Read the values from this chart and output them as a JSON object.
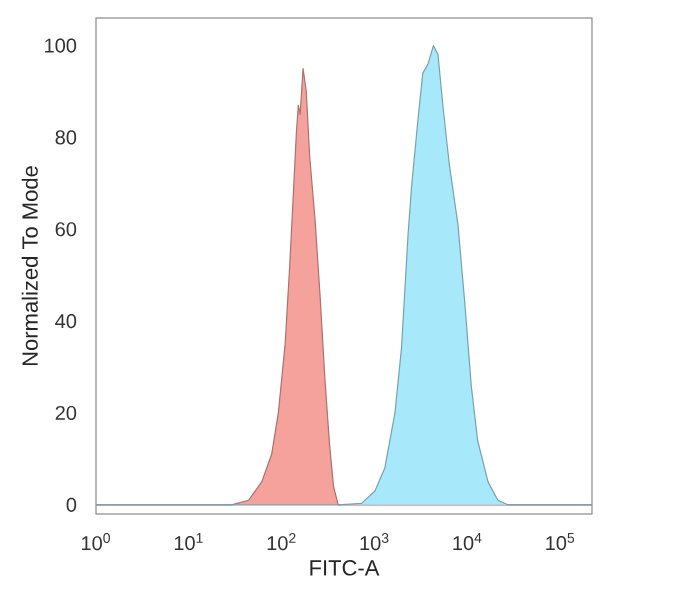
{
  "chart_data": {
    "type": "area",
    "xlabel": "FITC-A",
    "ylabel": "Normalized To Mode",
    "log": "x",
    "xlim": [
      1,
      220000
    ],
    "ylim": [
      -2,
      106
    ],
    "xticks": [
      {
        "value": 1,
        "label": "10$^{0}$"
      },
      {
        "value": 10,
        "label": "10$^{1}$"
      },
      {
        "value": 100,
        "label": "10$^{2}$"
      },
      {
        "value": 1000,
        "label": "10$^{3}$"
      },
      {
        "value": 10000,
        "label": "10$^{4}$"
      },
      {
        "value": 100000,
        "label": "10$^{5}$"
      }
    ],
    "yticks": [
      0,
      20,
      40,
      60,
      80,
      100
    ],
    "series": [
      {
        "color": "#f5a29c",
        "x": [
          1,
          29,
          44,
          61,
          78,
          92,
          109,
          122,
          133,
          144,
          151,
          158,
          170,
          184,
          200,
          229,
          260,
          293,
          328,
          362,
          406,
          220000
        ],
        "values": [
          0,
          0,
          1,
          5,
          11,
          20,
          35,
          52,
          67,
          81,
          87,
          85,
          95,
          90,
          76,
          62,
          45,
          27,
          13,
          4,
          0,
          0
        ]
      },
      {
        "color": "#a8e8fb",
        "x": [
          1,
          406,
          725,
          1010,
          1290,
          1660,
          1950,
          2300,
          2500,
          2940,
          3310,
          3770,
          4310,
          4830,
          5440,
          6400,
          7920,
          9380,
          11000,
          12900,
          16700,
          21300,
          27300,
          220000
        ],
        "values": [
          0,
          0,
          0.3,
          3,
          8,
          20,
          34,
          59,
          69,
          84,
          94,
          96,
          100,
          98,
          87,
          74,
          61,
          44,
          26,
          14,
          5,
          1,
          0,
          0
        ]
      }
    ]
  }
}
